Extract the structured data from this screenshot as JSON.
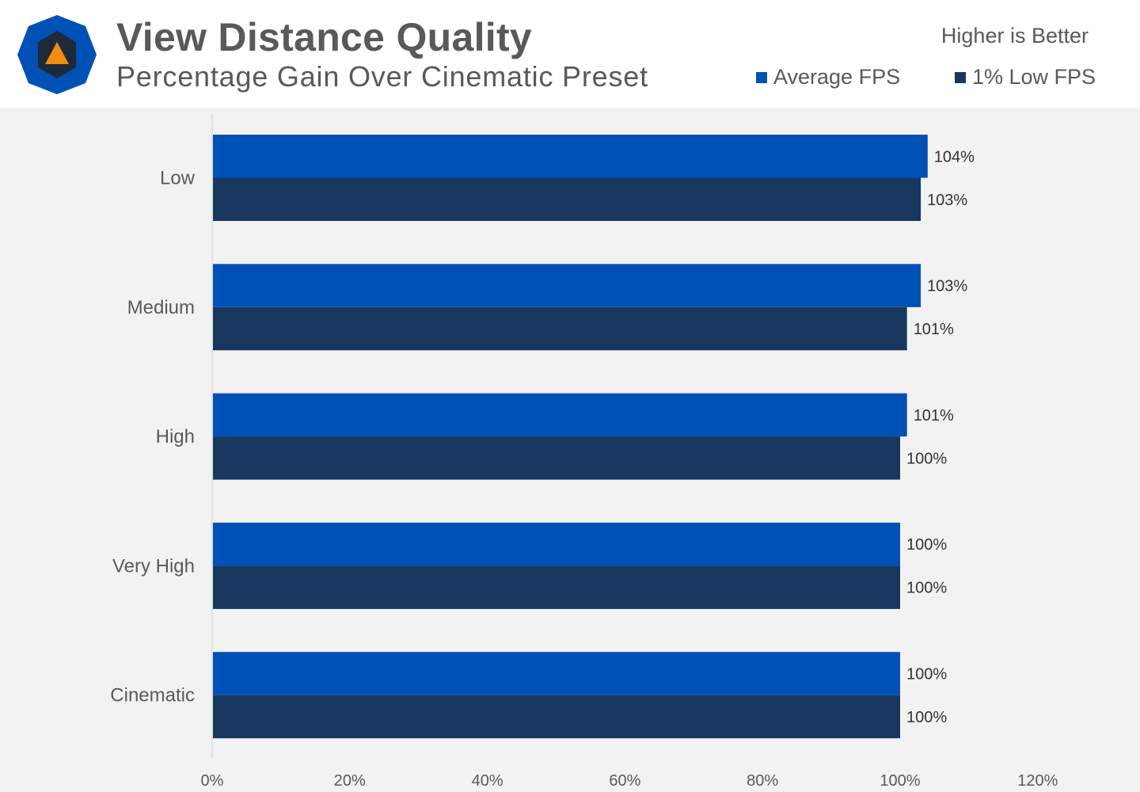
{
  "header": {
    "title": "View Distance Quality",
    "subtitle": "Percentage Gain Over Cinematic Preset",
    "note": "Higher is Better",
    "logo_icon": "octagon-triangle-logo-icon"
  },
  "legend": [
    {
      "label": "Average FPS",
      "color": "#0051b6"
    },
    {
      "label": "1% Low FPS",
      "color": "#17375e"
    }
  ],
  "chart_data": {
    "type": "bar",
    "orientation": "horizontal",
    "title": "View Distance Quality",
    "subtitle": "Percentage Gain Over Cinematic Preset",
    "categories": [
      "Low",
      "Medium",
      "High",
      "Very High",
      "Cinematic"
    ],
    "series": [
      {
        "name": "Average FPS",
        "color": "#0051b6",
        "values": [
          104,
          103,
          101,
          100,
          100
        ],
        "labels": [
          "104%",
          "103%",
          "101%",
          "100%",
          "100%"
        ]
      },
      {
        "name": "1% Low FPS",
        "color": "#17375e",
        "values": [
          103,
          101,
          100,
          100,
          100
        ],
        "labels": [
          "103%",
          "101%",
          "100%",
          "100%",
          "100%"
        ]
      }
    ],
    "xlim": [
      0,
      120
    ],
    "xticks": [
      "0%",
      "20%",
      "40%",
      "60%",
      "80%",
      "100%",
      "120%"
    ],
    "xtick_values": [
      0,
      20,
      40,
      60,
      80,
      100,
      120
    ],
    "grid": false,
    "legend_position": "top-right"
  }
}
